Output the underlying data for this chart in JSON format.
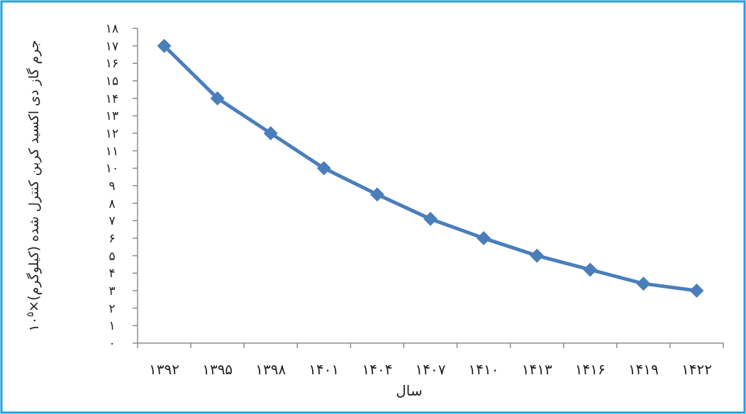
{
  "chart_data": {
    "type": "line",
    "xlabel": "سال",
    "ylabel": "جرم گاز دی اکسید کربن کنترل شده (کیلوگرم)×۱۰$^{۵}$",
    "categories": [
      "۱۳۹۲",
      "۱۳۹۵",
      "۱۳۹۸",
      "۱۴۰۱",
      "۱۴۰۴",
      "۱۴۰۷",
      "۱۴۱۰",
      "۱۴۱۳",
      "۱۴۱۶",
      "۱۴۱۹",
      "۱۴۲۲"
    ],
    "series": [
      {
        "color": "#4a7ebb",
        "values": [
          17,
          14,
          12,
          10,
          8.5,
          7.1,
          6,
          5,
          4.2,
          3.4,
          3
        ]
      }
    ],
    "ylim": [
      0,
      18
    ],
    "yticks": [
      {
        "value": 0,
        "label": "۰"
      },
      {
        "value": 1,
        "label": "۱"
      },
      {
        "value": 2,
        "label": "۲"
      },
      {
        "value": 3,
        "label": "۳"
      },
      {
        "value": 4,
        "label": "۴"
      },
      {
        "value": 5,
        "label": "۵"
      },
      {
        "value": 6,
        "label": "۶"
      },
      {
        "value": 7,
        "label": "۷"
      },
      {
        "value": 8,
        "label": "۸"
      },
      {
        "value": 9,
        "label": "۹"
      },
      {
        "value": 10,
        "label": "۱۰"
      },
      {
        "value": 11,
        "label": "۱۱"
      },
      {
        "value": 12,
        "label": "۱۲"
      },
      {
        "value": 13,
        "label": "۱۳"
      },
      {
        "value": 14,
        "label": "۱۴"
      },
      {
        "value": 15,
        "label": "۱۵"
      },
      {
        "value": 16,
        "label": "۱۶"
      },
      {
        "value": 17,
        "label": "۱۷"
      },
      {
        "value": 18,
        "label": "۱۸"
      }
    ],
    "marker": "diamond",
    "line_style": "solid"
  }
}
